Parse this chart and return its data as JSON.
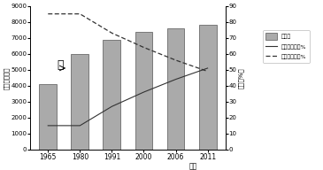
{
  "years": [
    1965,
    1980,
    1991,
    2000,
    2006,
    2011
  ],
  "population": [
    4100,
    6000,
    6900,
    7400,
    7600,
    7800
  ],
  "urban_pct": [
    15,
    15,
    27,
    36,
    44,
    51
  ],
  "rural_pct": [
    85,
    85,
    73,
    64,
    56,
    49
  ],
  "bar_color": "#aaaaaa",
  "bar_edgecolor": "#555555",
  "line_solid_color": "#333333",
  "line_dash_color": "#333333",
  "ylim_left": [
    0,
    9000
  ],
  "ylim_right": [
    0,
    90
  ],
  "yticks_left": [
    0,
    1000,
    2000,
    3000,
    4000,
    5000,
    6000,
    7000,
    8000,
    9000
  ],
  "yticks_right": [
    0,
    10,
    20,
    30,
    40,
    50,
    60,
    70,
    80,
    90
  ],
  "ylabel_left": "单位：万人）",
  "ylabel_right": "单位（%）",
  "xlabel": "年，",
  "legend_bar": "总人口",
  "legend_solid": "城镇人口比重%",
  "legend_dash": "乡村人口比重%",
  "label_yi": "乙",
  "background_color": "#ffffff"
}
